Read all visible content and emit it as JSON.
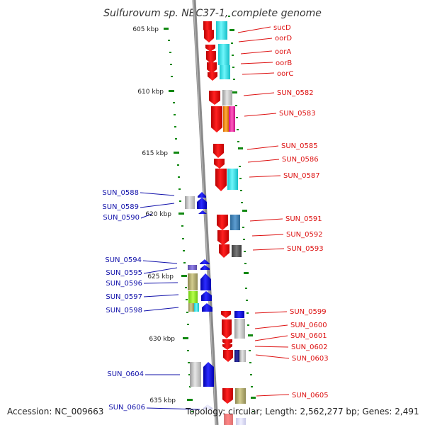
{
  "title": "Sulfurovum sp. NBC37-1, complete genome",
  "accession": "Accession: NC_009663",
  "topology": "Topology: circular; Length: 2,562,277 bp; Genes: 2,491",
  "colors": {
    "plus_strand_label": "#dd1111",
    "minus_strand_label": "#1111aa",
    "backbone": "#888888",
    "tick": "#118811"
  },
  "ticks": [
    "605 kbp",
    "610 kbp",
    "615 kbp",
    "620 kbp",
    "625 kbp",
    "630 kbp",
    "635 kbp"
  ],
  "genes_right": [
    "sucD",
    "oorD",
    "oorA",
    "oorB",
    "oorC",
    "SUN_0582",
    "SUN_0583",
    "SUN_0585",
    "SUN_0586",
    "SUN_0587",
    "SUN_0591",
    "SUN_0592",
    "SUN_0593",
    "SUN_0599",
    "SUN_0600",
    "SUN_0601",
    "SUN_0602",
    "SUN_0603",
    "SUN_0605"
  ],
  "genes_left": [
    "SUN_0588",
    "SUN_0589",
    "SUN_0590",
    "SUN_0594",
    "SUN_0595",
    "SUN_0596",
    "SUN_0597",
    "SUN_0598",
    "SUN_0604",
    "SUN_0606"
  ]
}
